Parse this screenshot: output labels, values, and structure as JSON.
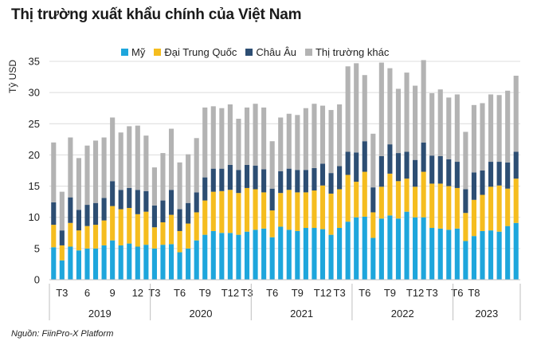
{
  "title": "Thị trường xuất khẩu chính của Việt Nam",
  "source": "Nguồn: FiinPro-X Platform",
  "colors": {
    "us": "#1ea6dc",
    "china": "#f5bd1f",
    "eu": "#2d4e73",
    "other": "#b3b3b3",
    "grid": "#dcdcdc",
    "axis": "#bfbfbf",
    "text": "#222222"
  },
  "chart_data": {
    "type": "bar",
    "stacked": true,
    "ylabel": "Tỷ USD",
    "ylim": [
      0,
      35
    ],
    "yticks": [
      "0",
      "5",
      "10",
      "15",
      "20",
      "25",
      "30",
      "35"
    ],
    "grid": true,
    "legend_position": "top",
    "month_tick_labels": [
      "",
      "T3",
      "",
      "",
      "6",
      "",
      "",
      "9",
      "",
      "",
      "12",
      "",
      "T3",
      "",
      "",
      "T6",
      "",
      "",
      "T9",
      "",
      "",
      "T12",
      "",
      "T3",
      "",
      "",
      "T6",
      "",
      "",
      "T9",
      "",
      "",
      "T12",
      "",
      "T3",
      "",
      "",
      "T6",
      "",
      "",
      "T9",
      "",
      "",
      "T12",
      "",
      "T3",
      "",
      "",
      "T6",
      "",
      "T8"
    ],
    "year_groups": [
      {
        "label": "2019",
        "count": 12
      },
      {
        "label": "2020",
        "count": 12
      },
      {
        "label": "2021",
        "count": 12
      },
      {
        "label": "2022",
        "count": 12
      },
      {
        "label": "2023",
        "count": 8
      }
    ],
    "series": [
      {
        "name": "Mỹ",
        "color_key": "us",
        "values": [
          5.2,
          3.1,
          5.3,
          4.7,
          5.0,
          5.0,
          5.5,
          6.3,
          5.5,
          5.8,
          5.3,
          5.6,
          5.0,
          5.6,
          5.7,
          4.4,
          5.0,
          6.3,
          7.2,
          7.8,
          7.5,
          7.5,
          7.2,
          7.7,
          8.0,
          8.2,
          6.8,
          8.5,
          8.0,
          7.8,
          8.3,
          8.3,
          8.1,
          7.2,
          8.3,
          9.3,
          10.0,
          10.1,
          6.7,
          9.8,
          10.3,
          9.8,
          10.9,
          10.0,
          10.0,
          8.3,
          8.2,
          8.0,
          8.2,
          6.2,
          7.0,
          7.8,
          7.9,
          7.7,
          8.6,
          9.1
        ]
      },
      {
        "name": "Đại Trung Quốc",
        "color_key": "china",
        "values": [
          3.6,
          2.4,
          3.8,
          3.2,
          3.6,
          3.8,
          4.0,
          5.5,
          5.8,
          5.7,
          5.2,
          5.3,
          3.4,
          3.6,
          4.7,
          3.4,
          4.0,
          4.5,
          5.5,
          6.3,
          6.7,
          6.9,
          6.7,
          7.0,
          6.5,
          5.8,
          4.3,
          5.4,
          6.4,
          6.2,
          5.7,
          6.0,
          7.0,
          6.6,
          6.2,
          7.5,
          5.7,
          7.2,
          4.1,
          5.1,
          6.7,
          6.0,
          5.3,
          4.9,
          7.3,
          7.1,
          7.2,
          7.0,
          6.5,
          4.5,
          5.8,
          5.8,
          7.0,
          7.4,
          6.0,
          7.1
        ]
      },
      {
        "name": "Châu Âu",
        "color_key": "eu",
        "values": [
          3.6,
          2.4,
          4.1,
          3.3,
          3.4,
          3.5,
          3.6,
          4.0,
          3.1,
          3.2,
          3.9,
          3.3,
          3.5,
          3.5,
          4.0,
          3.5,
          3.3,
          3.2,
          3.7,
          3.7,
          3.6,
          4.0,
          3.7,
          3.7,
          3.8,
          3.7,
          3.5,
          3.5,
          3.4,
          3.6,
          3.6,
          3.6,
          3.5,
          3.3,
          3.7,
          3.7,
          4.7,
          4.9,
          4.0,
          4.9,
          4.7,
          4.5,
          4.3,
          4.3,
          4.7,
          4.5,
          4.4,
          4.3,
          4.2,
          3.8,
          4.4,
          3.9,
          4.0,
          3.8,
          4.2,
          4.3
        ]
      },
      {
        "name": "Thị trường khác",
        "color_key": "other",
        "values": [
          9.6,
          6.2,
          9.6,
          8.3,
          9.5,
          10.0,
          9.7,
          10.2,
          9.2,
          9.9,
          10.3,
          8.9,
          6.1,
          7.6,
          9.8,
          7.5,
          7.8,
          8.7,
          11.2,
          10.0,
          9.7,
          9.7,
          8.2,
          9.2,
          9.9,
          9.9,
          7.6,
          8.6,
          8.8,
          8.8,
          9.9,
          10.3,
          9.3,
          10.1,
          9.9,
          13.7,
          14.3,
          10.6,
          8.6,
          15.0,
          12.2,
          10.3,
          12.7,
          11.9,
          13.2,
          10.0,
          10.7,
          9.9,
          10.8,
          9.2,
          10.8,
          10.8,
          10.8,
          10.7,
          11.5,
          12.2
        ]
      }
    ]
  }
}
